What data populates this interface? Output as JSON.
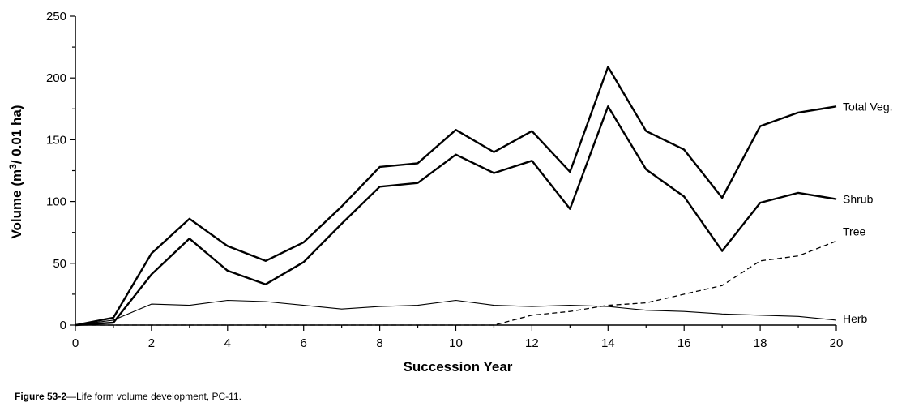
{
  "chart_data": {
    "type": "line",
    "xlabel": "Succession Year",
    "ylabel_main": "Volume (m",
    "ylabel_sup": "3",
    "ylabel_tail": "/ 0.01 ha)",
    "xlim": [
      0,
      20
    ],
    "ylim": [
      0,
      250
    ],
    "xticks": [
      0,
      2,
      4,
      6,
      8,
      10,
      12,
      14,
      16,
      18,
      20
    ],
    "yticks": [
      0,
      50,
      100,
      150,
      200,
      250
    ],
    "grid": false,
    "x": [
      0,
      1,
      2,
      3,
      4,
      5,
      6,
      7,
      8,
      9,
      10,
      11,
      12,
      13,
      14,
      15,
      16,
      17,
      18,
      19,
      20
    ],
    "series": [
      {
        "name": "Total Veg.",
        "style": "thick",
        "values": [
          0,
          6,
          58,
          86,
          64,
          52,
          67,
          96,
          128,
          131,
          158,
          140,
          157,
          124,
          209,
          157,
          142,
          103,
          161,
          172,
          177
        ]
      },
      {
        "name": "Shrub",
        "style": "thick",
        "values": [
          0,
          2,
          41,
          70,
          44,
          33,
          51,
          82,
          112,
          115,
          138,
          123,
          133,
          94,
          177,
          126,
          104,
          60,
          99,
          107,
          102
        ]
      },
      {
        "name": "Tree",
        "style": "dashed",
        "values": [
          0,
          0,
          0,
          0,
          0,
          0,
          0,
          0,
          0,
          0,
          0,
          0,
          8,
          11,
          16,
          18,
          25,
          32,
          52,
          56,
          68
        ]
      },
      {
        "name": "Herb",
        "style": "thin",
        "values": [
          0,
          4,
          17,
          16,
          20,
          19,
          16,
          13,
          15,
          16,
          20,
          16,
          15,
          16,
          15,
          12,
          11,
          9,
          8,
          7,
          4
        ]
      }
    ]
  },
  "caption": {
    "label": "Figure 53-2",
    "text": "—Life form volume development, PC-11."
  }
}
